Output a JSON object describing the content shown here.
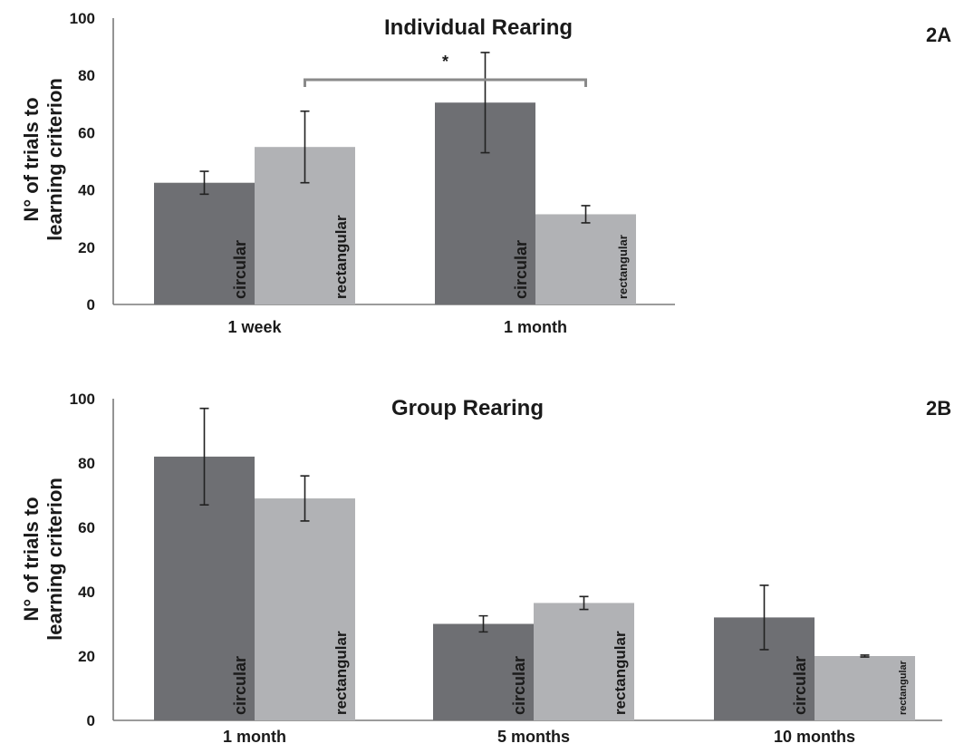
{
  "colors": {
    "circular": "#6e6f73",
    "rectangular": "#b1b2b5"
  },
  "chart_data": [
    {
      "type": "bar",
      "title": "Individual Rearing",
      "panel": "2A",
      "ylabel": "N° of trials to learning criterion",
      "ylabel_lines": [
        "N° of trials to",
        "learning criterion"
      ],
      "ylim": [
        0,
        100
      ],
      "yticks": [
        0,
        20,
        40,
        60,
        80,
        100
      ],
      "categories": [
        "1 week",
        "1 month"
      ],
      "series": [
        {
          "name": "circular",
          "values": [
            42.5,
            70.5
          ],
          "errors": [
            4,
            17.5
          ]
        },
        {
          "name": "rectangular",
          "values": [
            55,
            31.5
          ],
          "errors": [
            12.5,
            3
          ]
        }
      ],
      "annotations": [
        {
          "text": "*",
          "between": [
            "1 week rectangular",
            "1 month rectangular"
          ]
        }
      ],
      "grid": false
    },
    {
      "type": "bar",
      "title": "Group Rearing",
      "panel": "2B",
      "ylabel": "N° of trials to learning criterion",
      "ylabel_lines": [
        "N° of trials to",
        "learning criterion"
      ],
      "ylim": [
        0,
        100
      ],
      "yticks": [
        0,
        20,
        40,
        60,
        80,
        100
      ],
      "categories": [
        "1 month",
        "5 months",
        "10 months"
      ],
      "series": [
        {
          "name": "circular",
          "values": [
            82,
            30,
            32
          ],
          "errors": [
            15,
            2.5,
            10
          ]
        },
        {
          "name": "rectangular",
          "values": [
            69,
            36.5,
            20
          ],
          "errors": [
            7,
            2,
            0.3
          ]
        }
      ],
      "grid": false
    }
  ]
}
